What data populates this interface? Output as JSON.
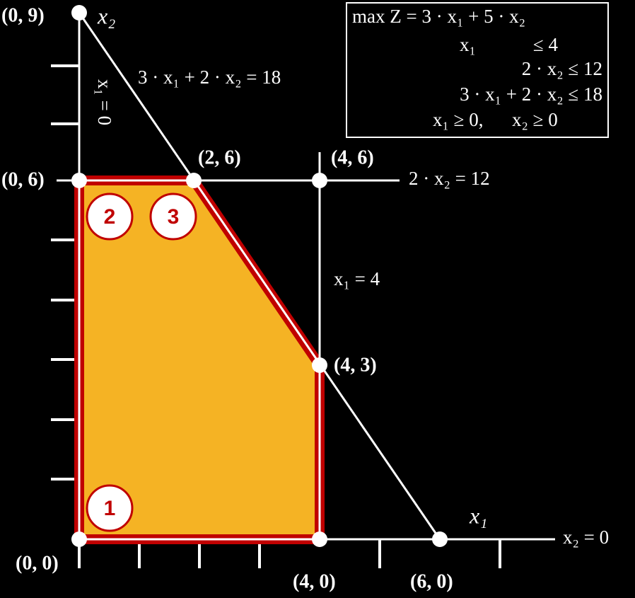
{
  "axes": {
    "x_label": "x₁",
    "y_label": "x₂"
  },
  "points": [
    "(0, 9)",
    "(0, 6)",
    "(2, 6)",
    "(4, 6)",
    "(4, 3)",
    "(0, 0)",
    "(4, 0)",
    "(6, 0)"
  ],
  "lines": {
    "c3": "3 · x₁ + 2 · x₂ = 18",
    "c2": "2 · x₂ = 12",
    "c1": "x₁ = 4",
    "x1_zero": "x₁ = 0",
    "x2_zero": "x₂ = 0"
  },
  "model": [
    "max Z = 3 · x₁ + 5 · x₂",
    "x₁            ≤ 4",
    "2 · x₂ ≤ 12",
    "3 · x₁ + 2 · x₂ ≤ 18",
    "x₁ ≥ 0,      x₂ ≥ 0"
  ],
  "markers": [
    "1",
    "2",
    "3"
  ]
}
